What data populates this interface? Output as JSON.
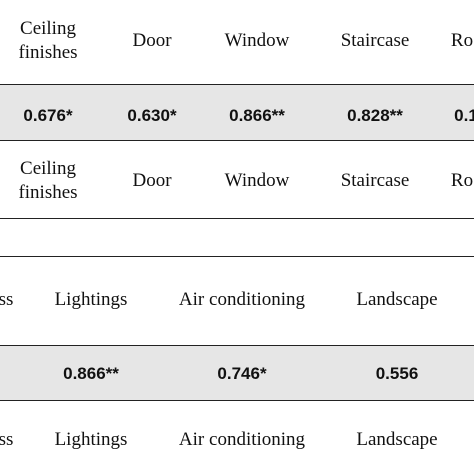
{
  "table1": {
    "header": [
      "Ceiling finishes",
      "Door",
      "Window",
      "Staircase",
      "Ro"
    ],
    "values": [
      "0.676*",
      "0.630*",
      "0.866**",
      "0.828**",
      "0.1"
    ],
    "footer": [
      "Ceiling finishes",
      "Door",
      "Window",
      "Staircase",
      "Ro"
    ]
  },
  "table2": {
    "header": [
      "ss",
      "Lightings",
      "Air conditioning",
      "Landscape"
    ],
    "values": [
      "0.866**",
      "0.746*",
      "0.556"
    ],
    "footer": [
      "ss",
      "Lightings",
      "Air conditioning",
      "Landscape"
    ]
  }
}
